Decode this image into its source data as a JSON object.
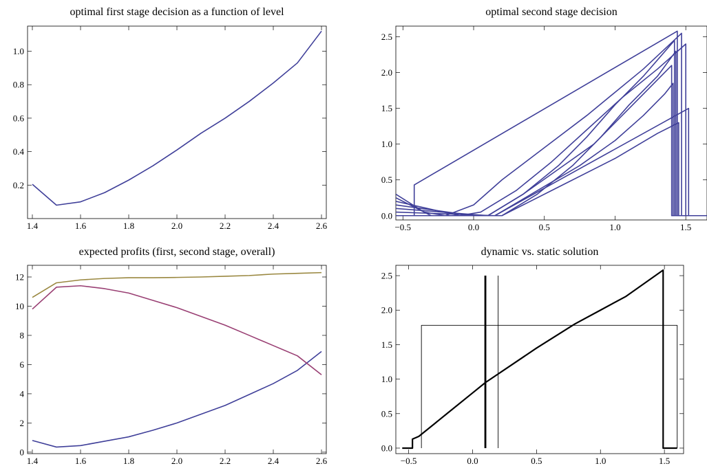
{
  "chart_data": [
    {
      "type": "line",
      "title": "optimal first stage decision as a function of level",
      "xlim": [
        1.38,
        2.62
      ],
      "ylim": [
        0.0,
        1.15
      ],
      "x_ticks": [
        1.4,
        1.6,
        1.8,
        2.0,
        2.2,
        2.4,
        2.6
      ],
      "x_tick_labels": [
        "1.4",
        "1.6",
        "1.8",
        "2.0",
        "2.2",
        "2.4",
        "2.6"
      ],
      "y_ticks": [
        0.2,
        0.4,
        0.6,
        0.8,
        1.0
      ],
      "y_tick_labels": [
        "0.2",
        "0.4",
        "0.6",
        "0.8",
        "1.0"
      ],
      "series": [
        {
          "color": "#3f3f99",
          "step": false,
          "x": [
            1.4,
            1.5,
            1.6,
            1.7,
            1.8,
            1.9,
            2.0,
            2.1,
            2.2,
            2.3,
            2.4,
            2.5,
            2.6
          ],
          "y": [
            0.205,
            0.08,
            0.1,
            0.155,
            0.23,
            0.315,
            0.41,
            0.51,
            0.6,
            0.7,
            0.81,
            0.93,
            1.12
          ]
        }
      ]
    },
    {
      "type": "line",
      "title": "optimal second stage decision",
      "xlim": [
        -0.55,
        1.65
      ],
      "ylim": [
        -0.06,
        2.65
      ],
      "x_ticks": [
        -0.5,
        0.0,
        0.5,
        1.0,
        1.5
      ],
      "x_tick_labels": [
        "−0.5",
        "0.0",
        "0.5",
        "1.0",
        "1.5"
      ],
      "y_ticks": [
        0.0,
        0.5,
        1.0,
        1.5,
        2.0,
        2.5
      ],
      "y_tick_labels": [
        "0.0",
        "0.5",
        "1.0",
        "1.5",
        "2.0",
        "2.5"
      ],
      "series": [
        {
          "color": "#3f3f99",
          "step": true,
          "x": [
            -0.55,
            -0.42,
            -0.42,
            1.44,
            1.44,
            1.65
          ],
          "y": [
            0.0,
            0.0,
            0.43,
            2.58,
            0.0,
            0.0
          ]
        },
        {
          "color": "#3f3f99",
          "step": true,
          "x": [
            -0.55,
            -0.35,
            -0.2,
            0.0,
            0.2,
            0.5,
            0.8,
            1.2,
            1.47,
            1.47,
            1.65
          ],
          "y": [
            0.3,
            0.05,
            0.0,
            0.15,
            0.5,
            0.95,
            1.4,
            2.05,
            2.55,
            0.0,
            0.0
          ]
        },
        {
          "color": "#3f3f99",
          "step": true,
          "x": [
            -0.55,
            -0.3,
            -0.1,
            0.05,
            0.3,
            0.55,
            0.8,
            1.05,
            1.3,
            1.5,
            1.5,
            1.65
          ],
          "y": [
            0.25,
            0.0,
            0.0,
            0.05,
            0.35,
            0.75,
            1.2,
            1.65,
            2.05,
            2.4,
            0.0,
            0.0
          ]
        },
        {
          "color": "#3f3f99",
          "step": true,
          "x": [
            -0.55,
            -0.1,
            0.1,
            0.35,
            0.6,
            0.8,
            1.0,
            1.2,
            1.42,
            1.42,
            1.65
          ],
          "y": [
            0.2,
            0.0,
            0.0,
            0.3,
            0.7,
            1.1,
            1.55,
            1.95,
            2.45,
            0.0,
            0.0
          ]
        },
        {
          "color": "#3f3f99",
          "step": true,
          "x": [
            -0.55,
            0.0,
            0.2,
            0.45,
            0.7,
            0.9,
            1.1,
            1.3,
            1.43,
            1.43,
            1.65
          ],
          "y": [
            0.15,
            0.0,
            0.0,
            0.3,
            0.7,
            1.1,
            1.55,
            1.95,
            2.3,
            0.0,
            0.0
          ]
        },
        {
          "color": "#3f3f99",
          "step": true,
          "x": [
            -0.55,
            0.1,
            0.35,
            0.6,
            0.85,
            1.05,
            1.25,
            1.4,
            1.4,
            1.65
          ],
          "y": [
            0.1,
            0.0,
            0.3,
            0.65,
            1.0,
            1.4,
            1.8,
            2.1,
            0.0,
            0.0
          ]
        },
        {
          "color": "#3f3f99",
          "step": true,
          "x": [
            -0.55,
            0.15,
            0.45,
            0.75,
            1.0,
            1.2,
            1.35,
            1.41,
            1.41,
            1.65
          ],
          "y": [
            0.05,
            0.0,
            0.35,
            0.7,
            1.05,
            1.4,
            1.7,
            1.85,
            0.0,
            0.0
          ]
        },
        {
          "color": "#3f3f99",
          "step": true,
          "x": [
            -0.55,
            0.2,
            0.6,
            1.0,
            1.3,
            1.45,
            1.45,
            1.65
          ],
          "y": [
            0.0,
            0.0,
            0.4,
            0.8,
            1.15,
            1.3,
            0.0,
            0.0
          ]
        },
        {
          "color": "#3f3f99",
          "step": true,
          "x": [
            -0.55,
            0.15,
            1.52,
            1.52,
            1.65
          ],
          "y": [
            0.0,
            0.0,
            1.5,
            0.0,
            0.0
          ]
        }
      ]
    },
    {
      "type": "line",
      "title": "expected profits (first, second stage, overall)",
      "xlim": [
        1.38,
        2.62
      ],
      "ylim": [
        -0.1,
        12.8
      ],
      "x_ticks": [
        1.4,
        1.6,
        1.8,
        2.0,
        2.2,
        2.4,
        2.6
      ],
      "x_tick_labels": [
        "1.4",
        "1.6",
        "1.8",
        "2.0",
        "2.2",
        "2.4",
        "2.6"
      ],
      "y_ticks": [
        0,
        2,
        4,
        6,
        8,
        10,
        12
      ],
      "y_tick_labels": [
        "0",
        "2",
        "4",
        "6",
        "8",
        "10",
        "12"
      ],
      "series": [
        {
          "color": "#3f3f99",
          "step": false,
          "x": [
            1.4,
            1.5,
            1.6,
            1.7,
            1.8,
            1.9,
            2.0,
            2.1,
            2.2,
            2.3,
            2.4,
            2.5,
            2.6
          ],
          "y": [
            0.8,
            0.35,
            0.45,
            0.75,
            1.05,
            1.5,
            2.0,
            2.6,
            3.2,
            3.95,
            4.7,
            5.6,
            6.9
          ]
        },
        {
          "color": "#993f73",
          "step": false,
          "x": [
            1.4,
            1.5,
            1.6,
            1.7,
            1.8,
            1.9,
            2.0,
            2.1,
            2.2,
            2.3,
            2.4,
            2.5,
            2.6
          ],
          "y": [
            9.8,
            11.3,
            11.4,
            11.2,
            10.9,
            10.4,
            9.9,
            9.3,
            8.7,
            8.0,
            7.3,
            6.6,
            5.3
          ]
        },
        {
          "color": "#99873f",
          "step": false,
          "x": [
            1.4,
            1.5,
            1.6,
            1.7,
            1.8,
            1.9,
            2.0,
            2.1,
            2.2,
            2.3,
            2.4,
            2.5,
            2.6
          ],
          "y": [
            10.6,
            11.6,
            11.8,
            11.9,
            11.95,
            11.95,
            11.97,
            12.0,
            12.05,
            12.1,
            12.2,
            12.25,
            12.3
          ]
        }
      ]
    },
    {
      "type": "line",
      "title": "dynamic vs. static solution",
      "xlim": [
        -0.6,
        1.65
      ],
      "ylim": [
        -0.08,
        2.65
      ],
      "x_ticks": [
        -0.5,
        0.0,
        0.5,
        1.0,
        1.5
      ],
      "x_tick_labels": [
        "−0.5",
        "0.0",
        "0.5",
        "1.0",
        "1.5"
      ],
      "y_ticks": [
        0.0,
        0.5,
        1.0,
        1.5,
        2.0,
        2.5
      ],
      "y_tick_labels": [
        "0.0",
        "0.5",
        "1.0",
        "1.5",
        "2.0",
        "2.5"
      ],
      "series": [
        {
          "color": "#000000",
          "width": 2.2,
          "step": true,
          "x": [
            -0.55,
            -0.47,
            -0.47,
            -0.42,
            -0.3,
            -0.2,
            0.0,
            0.1,
            0.3,
            0.5,
            0.8,
            1.0,
            1.2,
            1.49,
            1.49,
            1.6
          ],
          "y": [
            0.0,
            0.0,
            0.13,
            0.17,
            0.35,
            0.5,
            0.8,
            0.95,
            1.2,
            1.45,
            1.8,
            2.0,
            2.2,
            2.58,
            0.0,
            0.0
          ]
        },
        {
          "color": "#000000",
          "width": 2.8,
          "step": false,
          "x": [
            0.1,
            0.1
          ],
          "y": [
            0.0,
            2.5
          ]
        },
        {
          "color": "#000000",
          "width": 0.9,
          "step": false,
          "x": [
            0.2,
            0.2
          ],
          "y": [
            0.0,
            2.5
          ]
        },
        {
          "color": "#000000",
          "width": 0.9,
          "step": false,
          "x": [
            -0.4,
            -0.4,
            1.6,
            1.6
          ],
          "y": [
            0.0,
            1.78,
            1.78,
            0.0
          ]
        }
      ]
    }
  ]
}
